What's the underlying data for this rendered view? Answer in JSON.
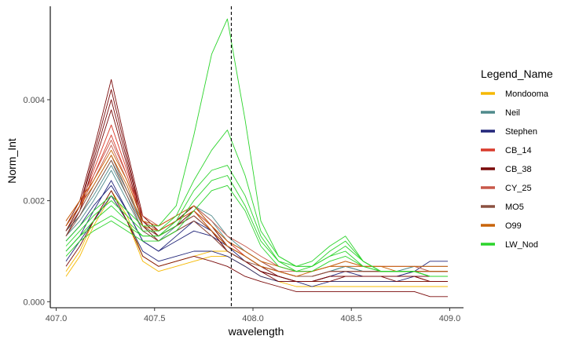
{
  "chart_data": {
    "type": "line",
    "title": "",
    "xlabel": "wavelength",
    "ylabel": "Norm_Int",
    "xlim": [
      406.97,
      409.07
    ],
    "ylim": [
      -0.00012,
      0.00585
    ],
    "xticks": [
      407.0,
      407.5,
      408.0,
      408.5,
      409.0
    ],
    "xtick_labels": [
      "407.0",
      "407.5",
      "408.0",
      "408.5",
      "409.0"
    ],
    "yticks": [
      0.0,
      0.002,
      0.004
    ],
    "ytick_labels": [
      "0.000",
      "0.002",
      "0.004"
    ],
    "grid": false,
    "vline_x": 407.89,
    "legend_title": "Legend_Name",
    "legend_position": "right",
    "x": [
      407.05,
      407.12,
      407.19,
      407.28,
      407.36,
      407.44,
      407.52,
      407.61,
      407.7,
      407.79,
      407.87,
      407.96,
      408.04,
      408.13,
      408.22,
      408.3,
      408.39,
      408.47,
      408.56,
      408.65,
      408.73,
      408.82,
      408.9,
      408.99
    ],
    "series": [
      {
        "name": "Mondooma",
        "color": "#F5B800",
        "lines": [
          [
            0.0005,
            0.0009,
            0.0015,
            0.0021,
            0.0016,
            0.0008,
            0.0006,
            0.0007,
            0.0008,
            0.0009,
            0.0009,
            0.0007,
            0.0005,
            0.0004,
            0.0003,
            0.0003,
            0.0003,
            0.0003,
            0.0003,
            0.0003,
            0.0003,
            0.0003,
            0.0003,
            0.0003
          ],
          [
            0.0006,
            0.001,
            0.0016,
            0.0022,
            0.0017,
            0.0009,
            0.0007,
            0.0008,
            0.0009,
            0.001,
            0.001,
            0.0008,
            0.0006,
            0.0005,
            0.0004,
            0.0004,
            0.0004,
            0.0004,
            0.0004,
            0.0004,
            0.0004,
            0.0004,
            0.0004,
            0.0004
          ]
        ]
      },
      {
        "name": "Neil",
        "color": "#4F8A8B",
        "lines": [
          [
            0.0014,
            0.0017,
            0.0021,
            0.0027,
            0.0021,
            0.0015,
            0.0013,
            0.0016,
            0.0019,
            0.0016,
            0.0012,
            0.001,
            0.0008,
            0.0006,
            0.0005,
            0.0005,
            0.0006,
            0.0007,
            0.0006,
            0.0006,
            0.0006,
            0.0007,
            0.0007,
            0.0007
          ],
          [
            0.0013,
            0.0016,
            0.002,
            0.0026,
            0.002,
            0.0014,
            0.0012,
            0.0015,
            0.0018,
            0.0015,
            0.0011,
            0.0009,
            0.0007,
            0.0006,
            0.0005,
            0.0005,
            0.0006,
            0.0007,
            0.0006,
            0.0006,
            0.0006,
            0.0006,
            0.0006,
            0.0006
          ],
          [
            0.0014,
            0.0017,
            0.0022,
            0.0028,
            0.0022,
            0.0016,
            0.0014,
            0.0016,
            0.0019,
            0.0017,
            0.0013,
            0.001,
            0.0008,
            0.0006,
            0.0005,
            0.0005,
            0.0006,
            0.0007,
            0.0006,
            0.0006,
            0.0006,
            0.0007,
            0.0006,
            0.0006
          ]
        ]
      },
      {
        "name": "Stephen",
        "color": "#22267A",
        "lines": [
          [
            0.0008,
            0.0012,
            0.0016,
            0.0021,
            0.0016,
            0.001,
            0.0008,
            0.0009,
            0.001,
            0.001,
            0.0009,
            0.0007,
            0.0005,
            0.0004,
            0.0004,
            0.0003,
            0.0004,
            0.0004,
            0.0004,
            0.0004,
            0.0004,
            0.0005,
            0.0005,
            0.0005
          ],
          [
            0.0012,
            0.0015,
            0.0019,
            0.0023,
            0.0018,
            0.0012,
            0.001,
            0.0012,
            0.0014,
            0.0013,
            0.0011,
            0.0008,
            0.0006,
            0.0005,
            0.0004,
            0.0004,
            0.0005,
            0.0005,
            0.0005,
            0.0005,
            0.0005,
            0.0006,
            0.0006,
            0.0006
          ],
          [
            0.001,
            0.0013,
            0.0018,
            0.0024,
            0.0018,
            0.0012,
            0.001,
            0.0013,
            0.0016,
            0.0014,
            0.001,
            0.0008,
            0.0006,
            0.0005,
            0.0004,
            0.0004,
            0.0005,
            0.0006,
            0.0005,
            0.0005,
            0.0005,
            0.0006,
            0.0008,
            0.0008
          ]
        ]
      },
      {
        "name": "CB_14",
        "color": "#D93A2B",
        "lines": [
          [
            0.0014,
            0.0018,
            0.0025,
            0.0033,
            0.0025,
            0.0016,
            0.0013,
            0.0015,
            0.0017,
            0.0014,
            0.0011,
            0.0009,
            0.0007,
            0.0006,
            0.0005,
            0.0005,
            0.0006,
            0.0006,
            0.0006,
            0.0006,
            0.0006,
            0.0006,
            0.0005,
            0.0005
          ],
          [
            0.0015,
            0.0019,
            0.0026,
            0.0035,
            0.0026,
            0.0017,
            0.0014,
            0.0016,
            0.0018,
            0.0015,
            0.0012,
            0.0009,
            0.0007,
            0.0006,
            0.0005,
            0.0005,
            0.0006,
            0.0006,
            0.0006,
            0.0006,
            0.0006,
            0.0006,
            0.0006,
            0.0006
          ]
        ]
      },
      {
        "name": "CB_38",
        "color": "#7A0A0A",
        "lines": [
          [
            0.0015,
            0.002,
            0.003,
            0.0044,
            0.003,
            0.0017,
            0.0014,
            0.0016,
            0.0019,
            0.0015,
            0.0011,
            0.0009,
            0.0007,
            0.0005,
            0.0004,
            0.0004,
            0.0005,
            0.0005,
            0.0005,
            0.0005,
            0.0005,
            0.0005,
            0.0005,
            0.0005
          ],
          [
            0.0014,
            0.0019,
            0.0029,
            0.0042,
            0.0029,
            0.0016,
            0.0013,
            0.0015,
            0.0018,
            0.0014,
            0.001,
            0.0008,
            0.0006,
            0.0005,
            0.0004,
            0.0004,
            0.0005,
            0.0005,
            0.0005,
            0.0005,
            0.0005,
            0.0005,
            0.0004,
            0.0004
          ],
          [
            0.0014,
            0.0019,
            0.0028,
            0.004,
            0.0028,
            0.0016,
            0.0013,
            0.0015,
            0.0017,
            0.0014,
            0.001,
            0.0008,
            0.0006,
            0.0005,
            0.0004,
            0.0004,
            0.0005,
            0.0005,
            0.0005,
            0.0005,
            0.0005,
            0.0005,
            0.0004,
            0.0004
          ],
          [
            0.0013,
            0.0018,
            0.0027,
            0.0038,
            0.0027,
            0.0015,
            0.0012,
            0.0014,
            0.0016,
            0.0013,
            0.001,
            0.0008,
            0.0006,
            0.0004,
            0.0004,
            0.0004,
            0.0004,
            0.0005,
            0.0005,
            0.0005,
            0.0004,
            0.0004,
            0.0004,
            0.0004
          ],
          [
            0.0007,
            0.0011,
            0.0016,
            0.0022,
            0.0016,
            0.0009,
            0.0007,
            0.0008,
            0.0009,
            0.0008,
            0.0007,
            0.0005,
            0.0004,
            0.0003,
            0.0002,
            0.0002,
            0.0002,
            0.0002,
            0.0002,
            0.0002,
            0.0002,
            0.0002,
            0.0001,
            0.0001
          ]
        ]
      },
      {
        "name": "CY_25",
        "color": "#C8584A",
        "lines": [
          [
            0.0015,
            0.0019,
            0.0024,
            0.0031,
            0.0024,
            0.0016,
            0.0014,
            0.0016,
            0.0018,
            0.0015,
            0.0012,
            0.001,
            0.0008,
            0.0006,
            0.0006,
            0.0006,
            0.0007,
            0.0007,
            0.0007,
            0.0007,
            0.0007,
            0.0007,
            0.0006,
            0.0006
          ],
          [
            0.0016,
            0.002,
            0.0025,
            0.0032,
            0.0025,
            0.0017,
            0.0015,
            0.0017,
            0.0019,
            0.0016,
            0.0013,
            0.0011,
            0.0009,
            0.0007,
            0.0006,
            0.0006,
            0.0007,
            0.0008,
            0.0007,
            0.0007,
            0.0007,
            0.0007,
            0.0007,
            0.0007
          ]
        ]
      },
      {
        "name": "MO5",
        "color": "#8B5040",
        "lines": [
          [
            0.0014,
            0.0018,
            0.0023,
            0.0029,
            0.0022,
            0.0015,
            0.0013,
            0.0015,
            0.0017,
            0.0014,
            0.0011,
            0.0009,
            0.0007,
            0.0006,
            0.0005,
            0.0005,
            0.0006,
            0.0006,
            0.0006,
            0.0006,
            0.0006,
            0.0006,
            0.0006,
            0.0006
          ],
          [
            0.0013,
            0.0017,
            0.0022,
            0.0028,
            0.0021,
            0.0014,
            0.0012,
            0.0014,
            0.0016,
            0.0013,
            0.001,
            0.0008,
            0.0007,
            0.0006,
            0.0005,
            0.0005,
            0.0006,
            0.0006,
            0.0006,
            0.0006,
            0.0006,
            0.0006,
            0.0005,
            0.0005
          ]
        ]
      },
      {
        "name": "O99",
        "color": "#C8640A",
        "lines": [
          [
            0.0016,
            0.002,
            0.0024,
            0.003,
            0.0024,
            0.0016,
            0.0015,
            0.0017,
            0.0019,
            0.0015,
            0.0012,
            0.001,
            0.0008,
            0.0007,
            0.0006,
            0.0006,
            0.0007,
            0.0008,
            0.0007,
            0.0007,
            0.0007,
            0.0007,
            0.0007,
            0.0007
          ],
          [
            0.0015,
            0.0019,
            0.0023,
            0.0029,
            0.0023,
            0.0015,
            0.0014,
            0.0016,
            0.0018,
            0.0014,
            0.0011,
            0.0009,
            0.0007,
            0.0006,
            0.0005,
            0.0006,
            0.0007,
            0.0007,
            0.0007,
            0.0007,
            0.0006,
            0.0006,
            0.0006,
            0.0006
          ]
        ]
      },
      {
        "name": "LW_Nod",
        "color": "#2BD42B",
        "lines": [
          [
            0.0012,
            0.0015,
            0.0018,
            0.0021,
            0.0018,
            0.0015,
            0.0015,
            0.0019,
            0.0033,
            0.0049,
            0.0056,
            0.0036,
            0.0016,
            0.0009,
            0.0007,
            0.0008,
            0.0011,
            0.0013,
            0.0008,
            0.0006,
            0.0006,
            0.0006,
            0.0005,
            0.0005
          ],
          [
            0.0011,
            0.0014,
            0.0017,
            0.002,
            0.0017,
            0.0014,
            0.0014,
            0.0017,
            0.0024,
            0.003,
            0.0034,
            0.0025,
            0.0014,
            0.0009,
            0.0007,
            0.0007,
            0.001,
            0.0012,
            0.0008,
            0.0006,
            0.0006,
            0.0006,
            0.0005,
            0.0005
          ],
          [
            0.001,
            0.0013,
            0.0016,
            0.0019,
            0.0016,
            0.0013,
            0.0013,
            0.0016,
            0.0022,
            0.0026,
            0.0027,
            0.0021,
            0.0013,
            0.0008,
            0.0007,
            0.0007,
            0.0009,
            0.0011,
            0.0008,
            0.0006,
            0.0006,
            0.0006,
            0.0005,
            0.0005
          ],
          [
            0.001,
            0.0013,
            0.0015,
            0.0017,
            0.0015,
            0.0013,
            0.0013,
            0.0015,
            0.002,
            0.0024,
            0.0025,
            0.0019,
            0.0012,
            0.0008,
            0.0006,
            0.0007,
            0.0009,
            0.001,
            0.0007,
            0.0006,
            0.0006,
            0.0006,
            0.0005,
            0.0005
          ],
          [
            0.0009,
            0.0012,
            0.0014,
            0.0016,
            0.0014,
            0.0012,
            0.0012,
            0.0014,
            0.0018,
            0.0022,
            0.0023,
            0.0018,
            0.0011,
            0.0007,
            0.0006,
            0.0006,
            0.0008,
            0.0009,
            0.0007,
            0.0006,
            0.0006,
            0.0006,
            0.0005,
            0.0005
          ]
        ]
      }
    ]
  }
}
